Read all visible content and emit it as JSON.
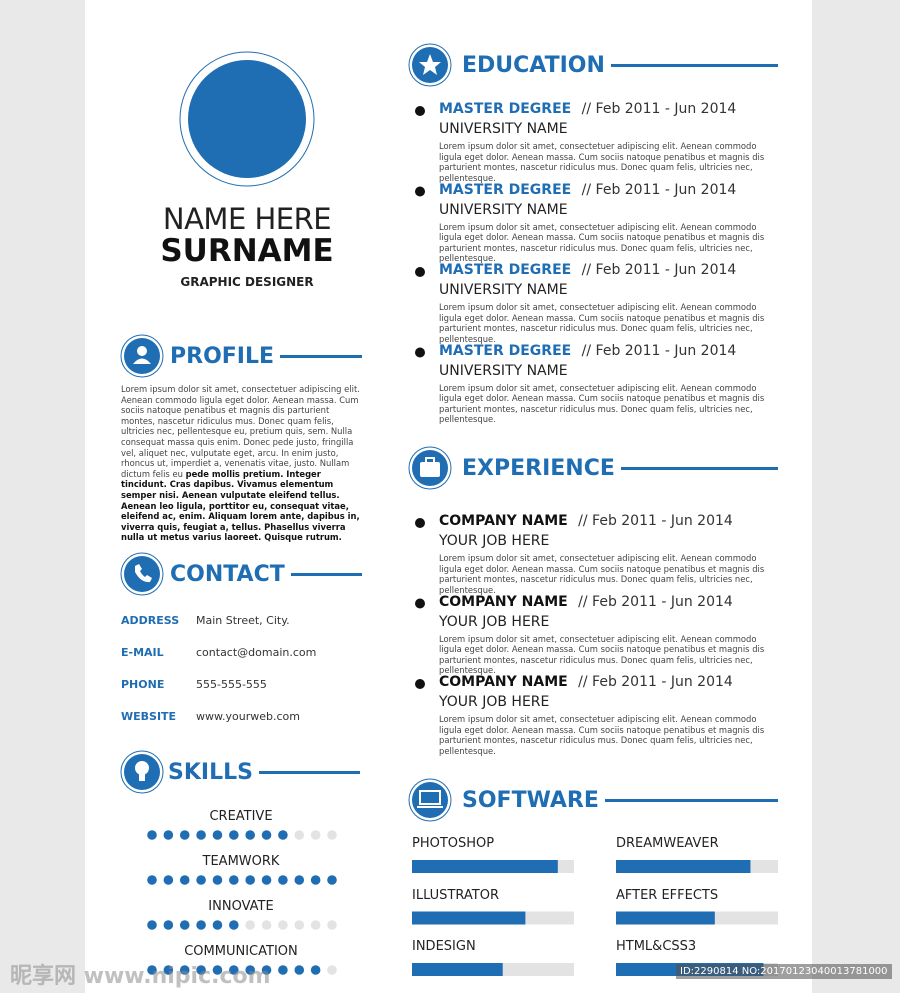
{
  "header": {
    "name": "NAME HERE",
    "surname": "SURNAME",
    "title": "GRAPHIC DESIGNER"
  },
  "profile": {
    "heading": "PROFILE",
    "text": "Lorem ipsum dolor sit amet, consectetuer adipiscing elit. Aenean commodo ligula eget dolor. Aenean massa. Cum sociis natoque penatibus et magnis dis parturient montes, nascetur ridiculus mus. Donec quam felis, ultricies nec, pellentesque eu, pretium quis, sem. Nulla consequat massa quis enim. Donec pede justo, fringilla vel, aliquet nec, vulputate eget, arcu. In enim justo, rhoncus ut, imperdiet a, venenatis vitae, justo. Nullam dictum felis eu",
    "bold_text": "pede mollis pretium. Integer tincidunt. Cras dapibus. Vivamus elementum semper nisi. Aenean vulputate eleifend tellus. Aenean leo ligula, porttitor eu, consequat vitae, eleifend ac, enim. Aliquam lorem ante, dapibus in, viverra quis, feugiat a, tellus. Phasellus viverra nulla ut metus varius laoreet. Quisque rutrum."
  },
  "contact": {
    "heading": "CONTACT",
    "items": [
      {
        "label": "ADDRESS",
        "value": "Main Street, City."
      },
      {
        "label": "E-MAIL",
        "value": "contact@domain.com"
      },
      {
        "label": "PHONE",
        "value": "555-555-555"
      },
      {
        "label": "WEBSITE",
        "value": "www.yourweb.com"
      }
    ]
  },
  "skills": {
    "heading": "SKILLS",
    "max": 12,
    "items": [
      {
        "name": "CREATIVE",
        "level": 9
      },
      {
        "name": "TEAMWORK",
        "level": 12
      },
      {
        "name": "INNOVATE",
        "level": 6
      },
      {
        "name": "COMMUNICATION",
        "level": 11
      }
    ]
  },
  "education": {
    "heading": "EDUCATION",
    "entries": [
      {
        "title": "MASTER DEGREE",
        "date": "// Feb 2011 - Jun 2014",
        "subtitle": "UNIVERSITY NAME",
        "text": "Lorem ipsum dolor sit amet, consectetuer adipiscing elit. Aenean commodo ligula eget dolor. Aenean massa. Cum sociis natoque penatibus et magnis dis parturient montes, nascetur ridiculus mus. Donec quam felis, ultricies nec, pellentesque."
      },
      {
        "title": "MASTER DEGREE",
        "date": "// Feb 2011 - Jun 2014",
        "subtitle": "UNIVERSITY NAME",
        "text": "Lorem ipsum dolor sit amet, consectetuer adipiscing elit. Aenean commodo ligula eget dolor. Aenean massa. Cum sociis natoque penatibus et magnis dis parturient montes, nascetur ridiculus mus. Donec quam felis, ultricies nec, pellentesque."
      },
      {
        "title": "MASTER DEGREE",
        "date": "// Feb 2011 - Jun 2014",
        "subtitle": "UNIVERSITY NAME",
        "text": "Lorem ipsum dolor sit amet, consectetuer adipiscing elit. Aenean commodo ligula eget dolor. Aenean massa. Cum sociis natoque penatibus et magnis dis parturient montes, nascetur ridiculus mus. Donec quam felis, ultricies nec, pellentesque."
      },
      {
        "title": "MASTER DEGREE",
        "date": "// Feb 2011 - Jun 2014",
        "subtitle": "UNIVERSITY NAME",
        "text": "Lorem ipsum dolor sit amet, consectetuer adipiscing elit. Aenean commodo ligula eget dolor. Aenean massa. Cum sociis natoque penatibus et magnis dis parturient montes, nascetur ridiculus mus. Donec quam felis, ultricies nec, pellentesque."
      }
    ]
  },
  "experience": {
    "heading": "EXPERIENCE",
    "entries": [
      {
        "title": "COMPANY NAME",
        "date": "// Feb 2011 - Jun 2014",
        "subtitle": "YOUR JOB HERE",
        "text": "Lorem ipsum dolor sit amet, consectetuer adipiscing elit. Aenean commodo ligula eget dolor. Aenean massa. Cum sociis natoque penatibus et magnis dis parturient montes, nascetur ridiculus mus. Donec quam felis, ultricies nec, pellentesque."
      },
      {
        "title": "COMPANY NAME",
        "date": "// Feb 2011 - Jun 2014",
        "subtitle": "YOUR JOB HERE",
        "text": "Lorem ipsum dolor sit amet, consectetuer adipiscing elit. Aenean commodo ligula eget dolor. Aenean massa. Cum sociis natoque penatibus et magnis dis parturient montes, nascetur ridiculus mus. Donec quam felis, ultricies nec, pellentesque."
      },
      {
        "title": "COMPANY NAME",
        "date": "// Feb 2011 - Jun 2014",
        "subtitle": "YOUR JOB HERE",
        "text": "Lorem ipsum dolor sit amet, consectetuer adipiscing elit. Aenean commodo ligula eget dolor. Aenean massa. Cum sociis natoque penatibus et magnis dis parturient montes, nascetur ridiculus mus. Donec quam felis, ultricies nec, pellentesque."
      }
    ]
  },
  "software": {
    "heading": "SOFTWARE",
    "max": 100,
    "items": [
      {
        "name": "PHOTOSHOP",
        "level": 90
      },
      {
        "name": "DREAMWEAVER",
        "level": 83
      },
      {
        "name": "ILLUSTRATOR",
        "level": 70
      },
      {
        "name": "AFTER EFFECTS",
        "level": 61
      },
      {
        "name": "INDESIGN",
        "level": 56
      },
      {
        "name": "HTML&CSS3",
        "level": 91
      }
    ]
  },
  "watermark": {
    "site": "昵享网 www.nipic.com",
    "id": "ID:2290814 NO:20170123040013781000"
  }
}
